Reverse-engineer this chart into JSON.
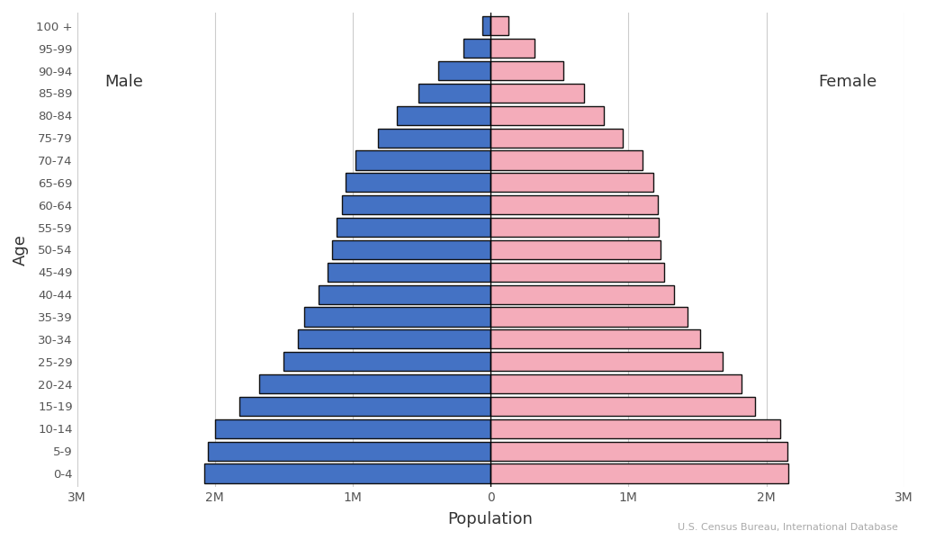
{
  "age_groups": [
    "0-4",
    "5-9",
    "10-14",
    "15-19",
    "20-24",
    "25-29",
    "30-34",
    "35-39",
    "40-44",
    "45-49",
    "50-54",
    "55-59",
    "60-64",
    "65-69",
    "70-74",
    "75-79",
    "80-84",
    "85-89",
    "90-94",
    "95-99",
    "100 +"
  ],
  "male_values": [
    2080000,
    2050000,
    2000000,
    1820000,
    1680000,
    1500000,
    1400000,
    1350000,
    1250000,
    1180000,
    1150000,
    1120000,
    1080000,
    1050000,
    980000,
    820000,
    680000,
    520000,
    380000,
    200000,
    60000
  ],
  "female_values": [
    2160000,
    2150000,
    2100000,
    1920000,
    1820000,
    1680000,
    1520000,
    1430000,
    1330000,
    1260000,
    1230000,
    1220000,
    1210000,
    1180000,
    1100000,
    960000,
    820000,
    680000,
    530000,
    320000,
    130000
  ],
  "male_color": "#4472C4",
  "female_color": "#F4ACBA",
  "edge_color": "#111111",
  "background_color": "#ffffff",
  "xlabel": "Population",
  "ylabel": "Age",
  "xlim": 3000000,
  "tick_values": [
    -3000000,
    -2000000,
    -1000000,
    0,
    1000000,
    2000000,
    3000000
  ],
  "tick_labels": [
    "3M",
    "2M",
    "1M",
    "0",
    "1M",
    "2M",
    "3M"
  ],
  "male_label": "Male",
  "female_label": "Female",
  "source_text": "U.S. Census Bureau, International Database",
  "bar_height": 0.85,
  "linewidth": 1.0
}
